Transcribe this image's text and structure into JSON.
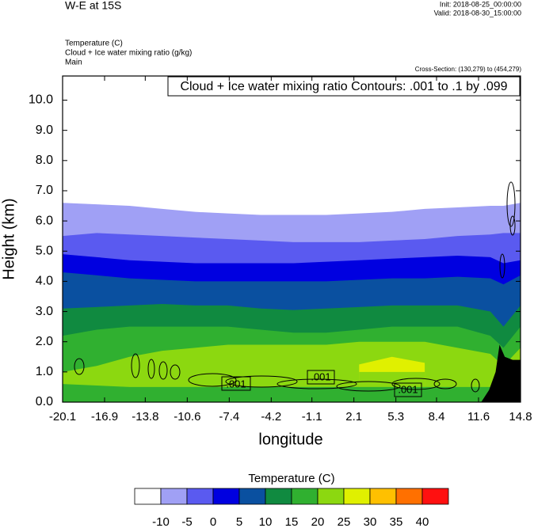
{
  "chart_data": {
    "type": "contour",
    "title": "W-E at 15S",
    "init": "Init: 2018-08-25_00:00:00",
    "valid": "Valid: 2018-08-30_15:00:00",
    "fields": [
      "Temperature   (C)",
      "Cloud + Ice water mixing ratio   (g/kg)",
      "Main"
    ],
    "cross_section": "Cross-Section: (130,279) to (454,279)",
    "contour_info": "Cloud + Ice water mixing ratio Contours: .001 to .1 by .099",
    "contour_labels": [
      ".001",
      ".001",
      ".001"
    ],
    "x_label": "longitude",
    "y_label": "Height (km)",
    "xlim": [
      -20.1,
      14.8
    ],
    "ylim": [
      0,
      10.8
    ],
    "xticks": [
      -20.1,
      -16.9,
      -13.8,
      -10.6,
      -7.4,
      -4.2,
      -1.1,
      2.1,
      5.3,
      8.4,
      11.6,
      14.8
    ],
    "yticks": [
      {
        "value": 0,
        "label": "0.0"
      },
      {
        "value": 1,
        "label": "1.0"
      },
      {
        "value": 2,
        "label": "2.0"
      },
      {
        "value": 3,
        "label": "3.0"
      },
      {
        "value": 4,
        "label": "4.0"
      },
      {
        "value": 5,
        "label": "5.0"
      },
      {
        "value": 6,
        "label": "6.0"
      },
      {
        "value": 7,
        "label": "7.0"
      },
      {
        "value": 8,
        "label": "8.0"
      },
      {
        "value": 9,
        "label": "9.0"
      },
      {
        "value": 10,
        "label": "10.0"
      }
    ],
    "x": [
      -20.1,
      -17.5,
      -15,
      -12.5,
      -10,
      -7.5,
      -5,
      -2.5,
      0,
      2.5,
      5,
      7.5,
      10,
      12.5,
      13.5,
      14.8
    ],
    "series": [
      {
        "color": "#a0a0f5",
        "values": [
          6.6,
          6.55,
          6.5,
          6.4,
          6.3,
          6.25,
          6.2,
          6.2,
          6.2,
          6.25,
          6.3,
          6.4,
          6.45,
          6.5,
          6.5,
          6.6
        ]
      },
      {
        "color": "#5a5af0",
        "values": [
          5.5,
          5.6,
          5.55,
          5.5,
          5.45,
          5.4,
          5.35,
          5.3,
          5.3,
          5.3,
          5.35,
          5.4,
          5.5,
          5.55,
          5.6,
          5.6
        ]
      },
      {
        "color": "#0000e0",
        "values": [
          4.9,
          4.8,
          4.7,
          4.65,
          4.6,
          4.6,
          4.6,
          4.6,
          4.65,
          4.7,
          4.75,
          4.8,
          4.85,
          4.8,
          4.6,
          4.7
        ]
      },
      {
        "color": "#0a50a0",
        "values": [
          4.3,
          4.2,
          4.1,
          4.05,
          4.0,
          4.0,
          4.0,
          4.0,
          4.0,
          4.05,
          4.1,
          4.1,
          4.15,
          4.1,
          3.9,
          4.2
        ]
      },
      {
        "color": "#108a40",
        "values": [
          3.1,
          3.15,
          3.2,
          3.25,
          3.2,
          3.2,
          3.1,
          3.05,
          3.1,
          3.15,
          3.2,
          3.2,
          3.2,
          3.0,
          2.5,
          3.2
        ]
      },
      {
        "color": "#30b030",
        "values": [
          2.2,
          2.4,
          2.5,
          2.5,
          2.5,
          2.5,
          2.4,
          2.3,
          2.3,
          2.4,
          2.5,
          2.5,
          2.5,
          2.2,
          1.8,
          2.5
        ]
      },
      {
        "color": "#8cd810",
        "values": [
          1.0,
          1.2,
          1.5,
          1.7,
          1.8,
          1.9,
          1.9,
          1.9,
          1.9,
          2.0,
          2.0,
          2.0,
          1.8,
          1.6,
          1.2,
          1.8
        ]
      },
      {
        "color": "#e0f000",
        "values": [
          null,
          null,
          null,
          null,
          null,
          null,
          null,
          null,
          null,
          1.25,
          1.5,
          1.3,
          null,
          null,
          null,
          null
        ]
      },
      {
        "color": "#8cd810",
        "values": [
          null,
          null,
          null,
          null,
          null,
          null,
          null,
          null,
          null,
          1.0,
          1.0,
          1.0,
          null,
          null,
          null,
          null
        ]
      },
      {
        "color": "#30b030",
        "values": [
          0.6,
          0.55,
          0.5,
          0.5,
          0.5,
          0.5,
          0.5,
          0.5,
          0.5,
          0.5,
          0.5,
          0.5,
          0.5,
          0.5,
          0.6,
          0.6
        ]
      }
    ],
    "terrain": {
      "color": "#000000",
      "x": [
        11.8,
        12.4,
        12.9,
        13.2,
        13.6,
        14.2,
        14.8
      ],
      "values": [
        0,
        0.4,
        1.0,
        1.9,
        1.5,
        1.4,
        1.4
      ]
    },
    "colorbar": {
      "title": "Temperature  (C)",
      "levels": [
        -10,
        -5,
        0,
        5,
        10,
        15,
        20,
        25,
        30,
        35,
        40
      ],
      "colors": [
        "#ffffff",
        "#a0a0f5",
        "#5a5af0",
        "#0000e0",
        "#0a50a0",
        "#108a40",
        "#30b030",
        "#8cd810",
        "#e0f000",
        "#ffc000",
        "#ff7000",
        "#ff1010"
      ]
    }
  }
}
